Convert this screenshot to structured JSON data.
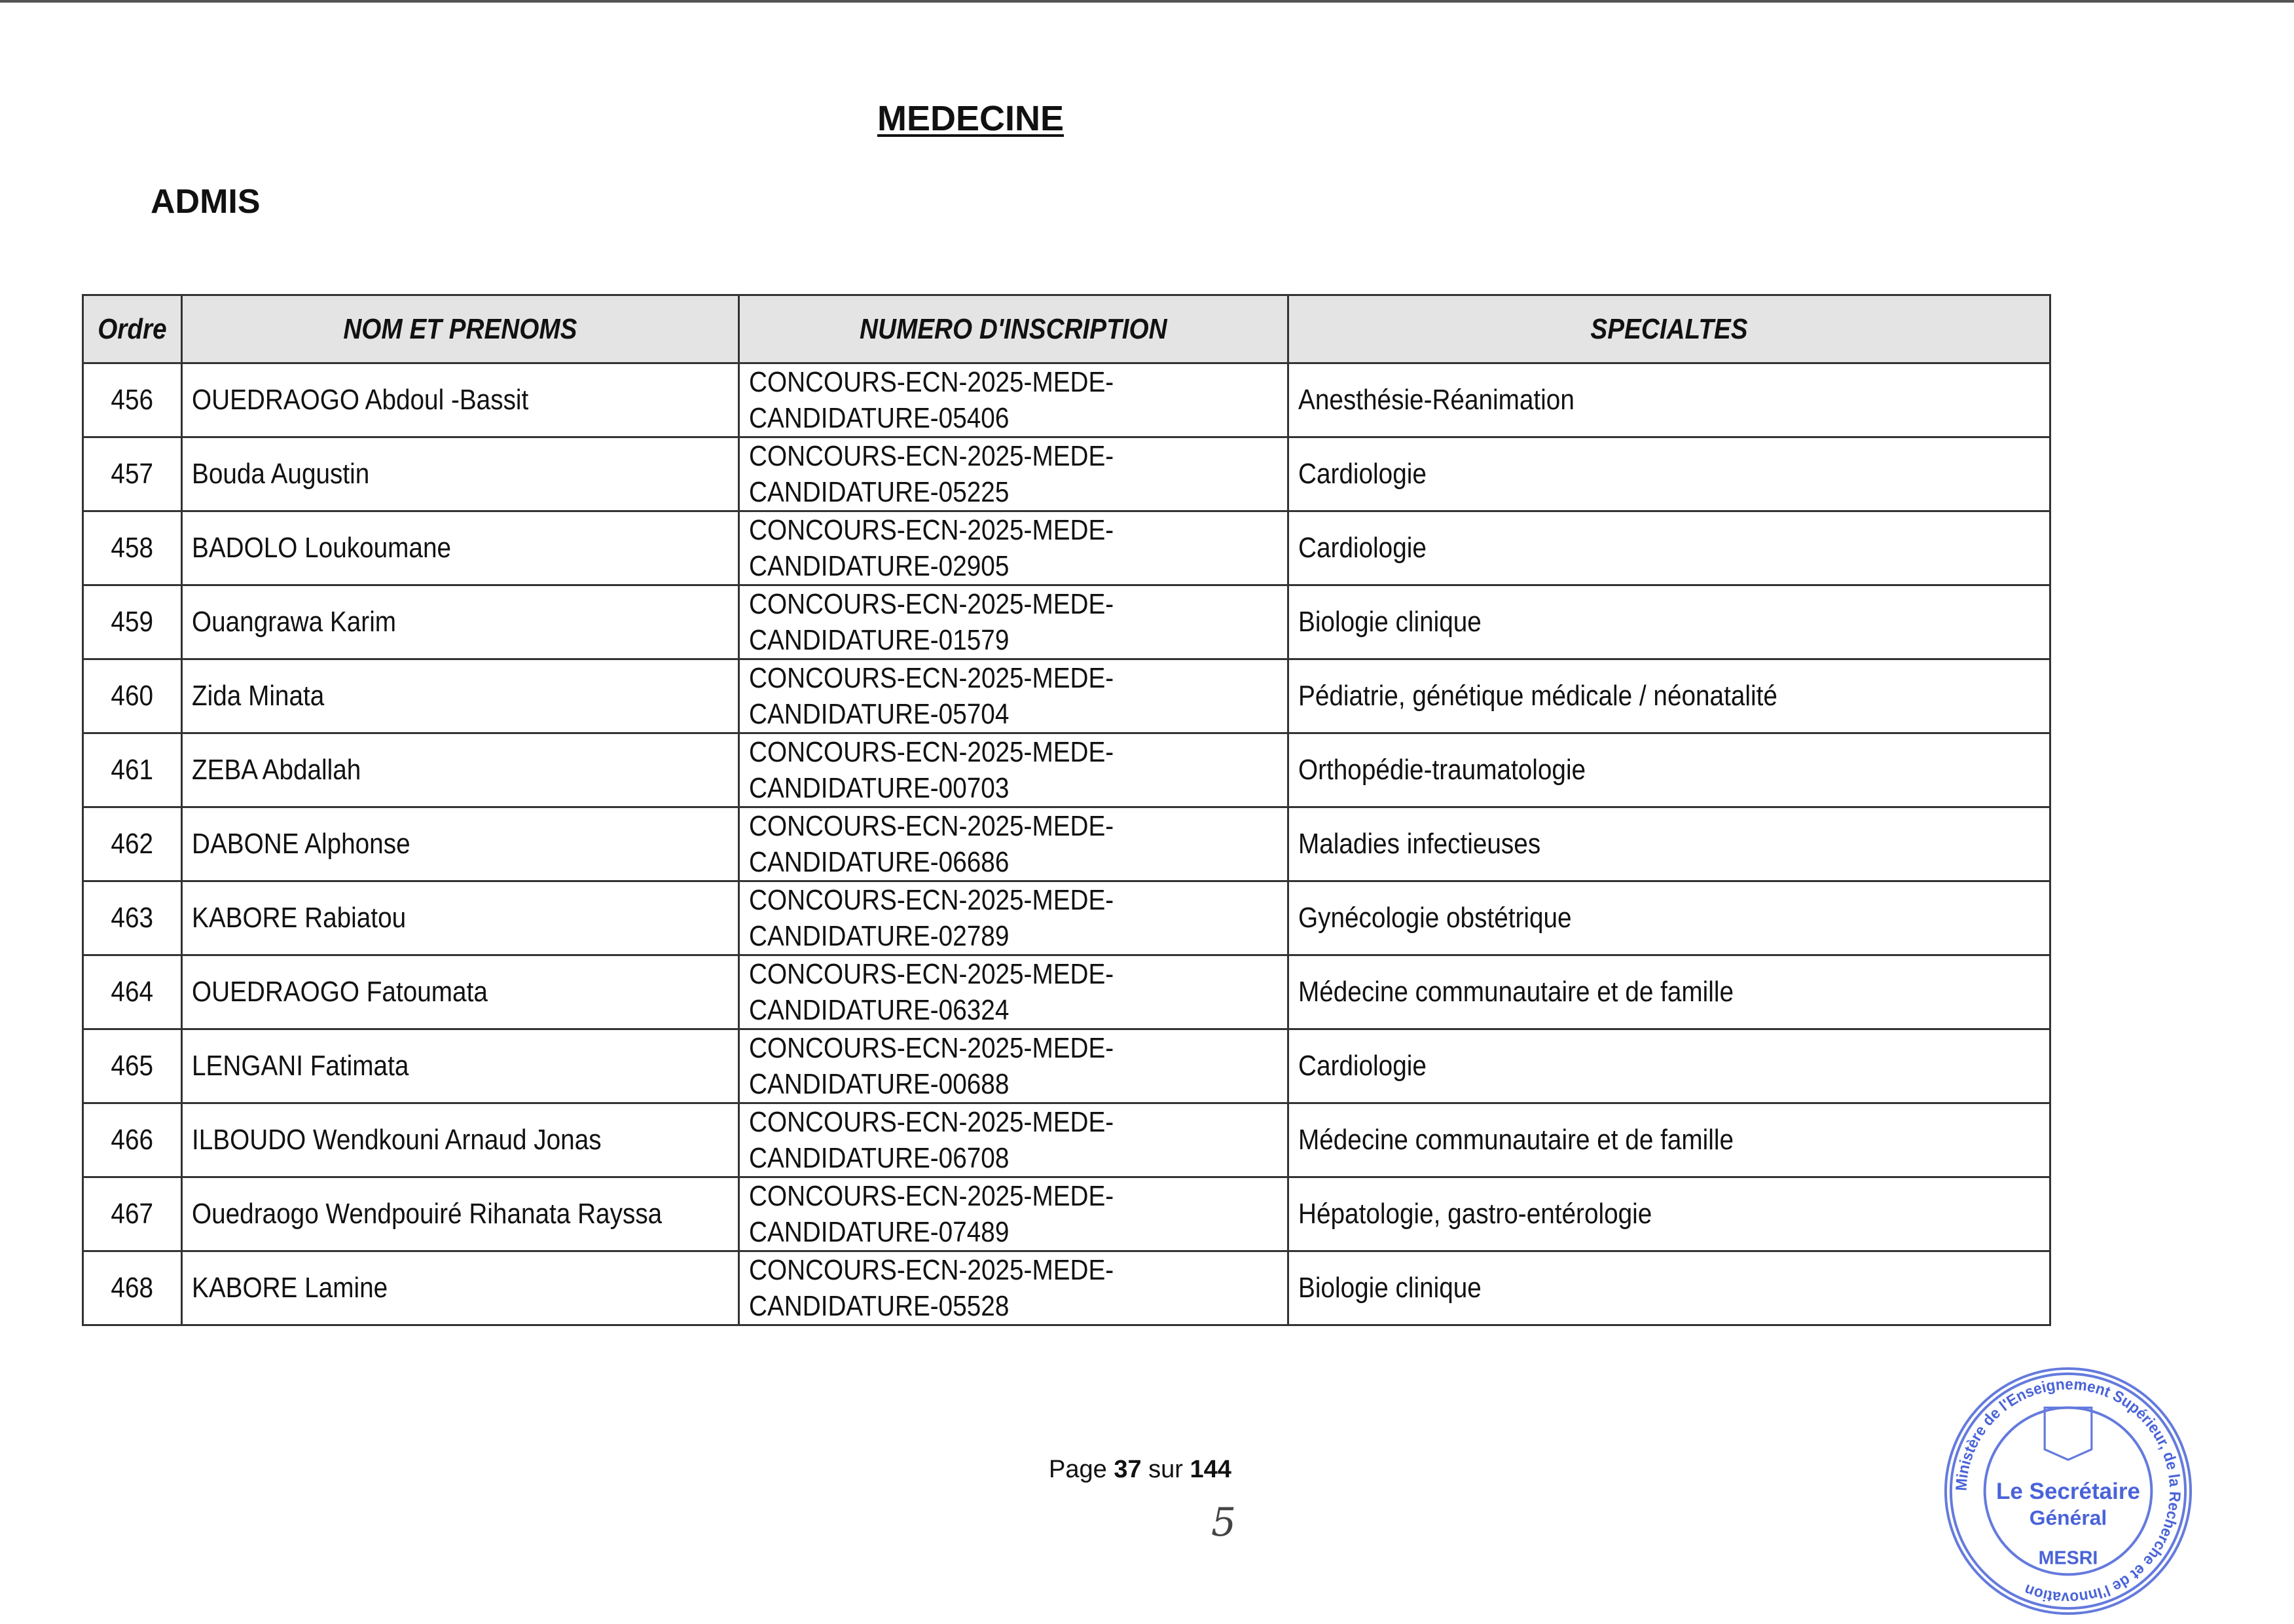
{
  "title": "MEDECINE",
  "section": "ADMIS",
  "table": {
    "headers": [
      "Ordre",
      "NOM ET PRENOMS",
      "NUMERO D'INSCRIPTION",
      "SPECIALTES"
    ],
    "rows": [
      {
        "ordre": "456",
        "nom": "OUEDRAOGO  Abdoul -Bassit",
        "num1": "CONCOURS-ECN-2025-MEDE-",
        "num2": "CANDIDATURE-05406",
        "spec": "Anesthésie-Réanimation"
      },
      {
        "ordre": "457",
        "nom": "Bouda Augustin",
        "num1": "CONCOURS-ECN-2025-MEDE-",
        "num2": "CANDIDATURE-05225",
        "spec": "Cardiologie"
      },
      {
        "ordre": "458",
        "nom": "BADOLO Loukoumane",
        "num1": "CONCOURS-ECN-2025-MEDE-",
        "num2": "CANDIDATURE-02905",
        "spec": "Cardiologie"
      },
      {
        "ordre": "459",
        "nom": "Ouangrawa  Karim",
        "num1": "CONCOURS-ECN-2025-MEDE-",
        "num2": "CANDIDATURE-01579",
        "spec": "Biologie clinique"
      },
      {
        "ordre": "460",
        "nom": "Zida Minata",
        "num1": "CONCOURS-ECN-2025-MEDE-",
        "num2": "CANDIDATURE-05704",
        "spec": "Pédiatrie, génétique médicale / néonatalité"
      },
      {
        "ordre": "461",
        "nom": "ZEBA Abdallah",
        "num1": "CONCOURS-ECN-2025-MEDE-",
        "num2": "CANDIDATURE-00703",
        "spec": "Orthopédie-traumatologie"
      },
      {
        "ordre": "462",
        "nom": "DABONE Alphonse",
        "num1": "CONCOURS-ECN-2025-MEDE-",
        "num2": "CANDIDATURE-06686",
        "spec": "Maladies infectieuses"
      },
      {
        "ordre": "463",
        "nom": "KABORE Rabiatou",
        "num1": "CONCOURS-ECN-2025-MEDE-",
        "num2": "CANDIDATURE-02789",
        "spec": "Gynécologie obstétrique"
      },
      {
        "ordre": "464",
        "nom": "OUEDRAOGO  Fatoumata",
        "num1": "CONCOURS-ECN-2025-MEDE-",
        "num2": "CANDIDATURE-06324",
        "spec": "Médecine communautaire et de famille"
      },
      {
        "ordre": "465",
        "nom": "LENGANI  Fatimata",
        "num1": "CONCOURS-ECN-2025-MEDE-",
        "num2": "CANDIDATURE-00688",
        "spec": "Cardiologie"
      },
      {
        "ordre": "466",
        "nom": "ILBOUDO  Wendkouni Arnaud Jonas",
        "num1": "CONCOURS-ECN-2025-MEDE-",
        "num2": "CANDIDATURE-06708",
        "spec": "Médecine communautaire et de famille"
      },
      {
        "ordre": "467",
        "nom": "Ouedraogo  Wendpouiré Rihanata Rayssa",
        "num1": "CONCOURS-ECN-2025-MEDE-",
        "num2": "CANDIDATURE-07489",
        "spec": "Hépatologie, gastro-entérologie"
      },
      {
        "ordre": "468",
        "nom": "KABORE Lamine",
        "num1": "CONCOURS-ECN-2025-MEDE-",
        "num2": "CANDIDATURE-05528",
        "spec": "Biologie clinique"
      }
    ]
  },
  "footer": {
    "page_label": "Page",
    "page": "37",
    "sur": "sur",
    "total": "144",
    "handwritten": "5"
  },
  "stamp": {
    "ring_text": "Ministère de l'Enseignement Supérieur, de la Recherche et de l'Innovation",
    "center_line1": "Le Secrétaire",
    "center_line2": "Général",
    "bottom": "MESRI",
    "color": "#4a63d8"
  }
}
